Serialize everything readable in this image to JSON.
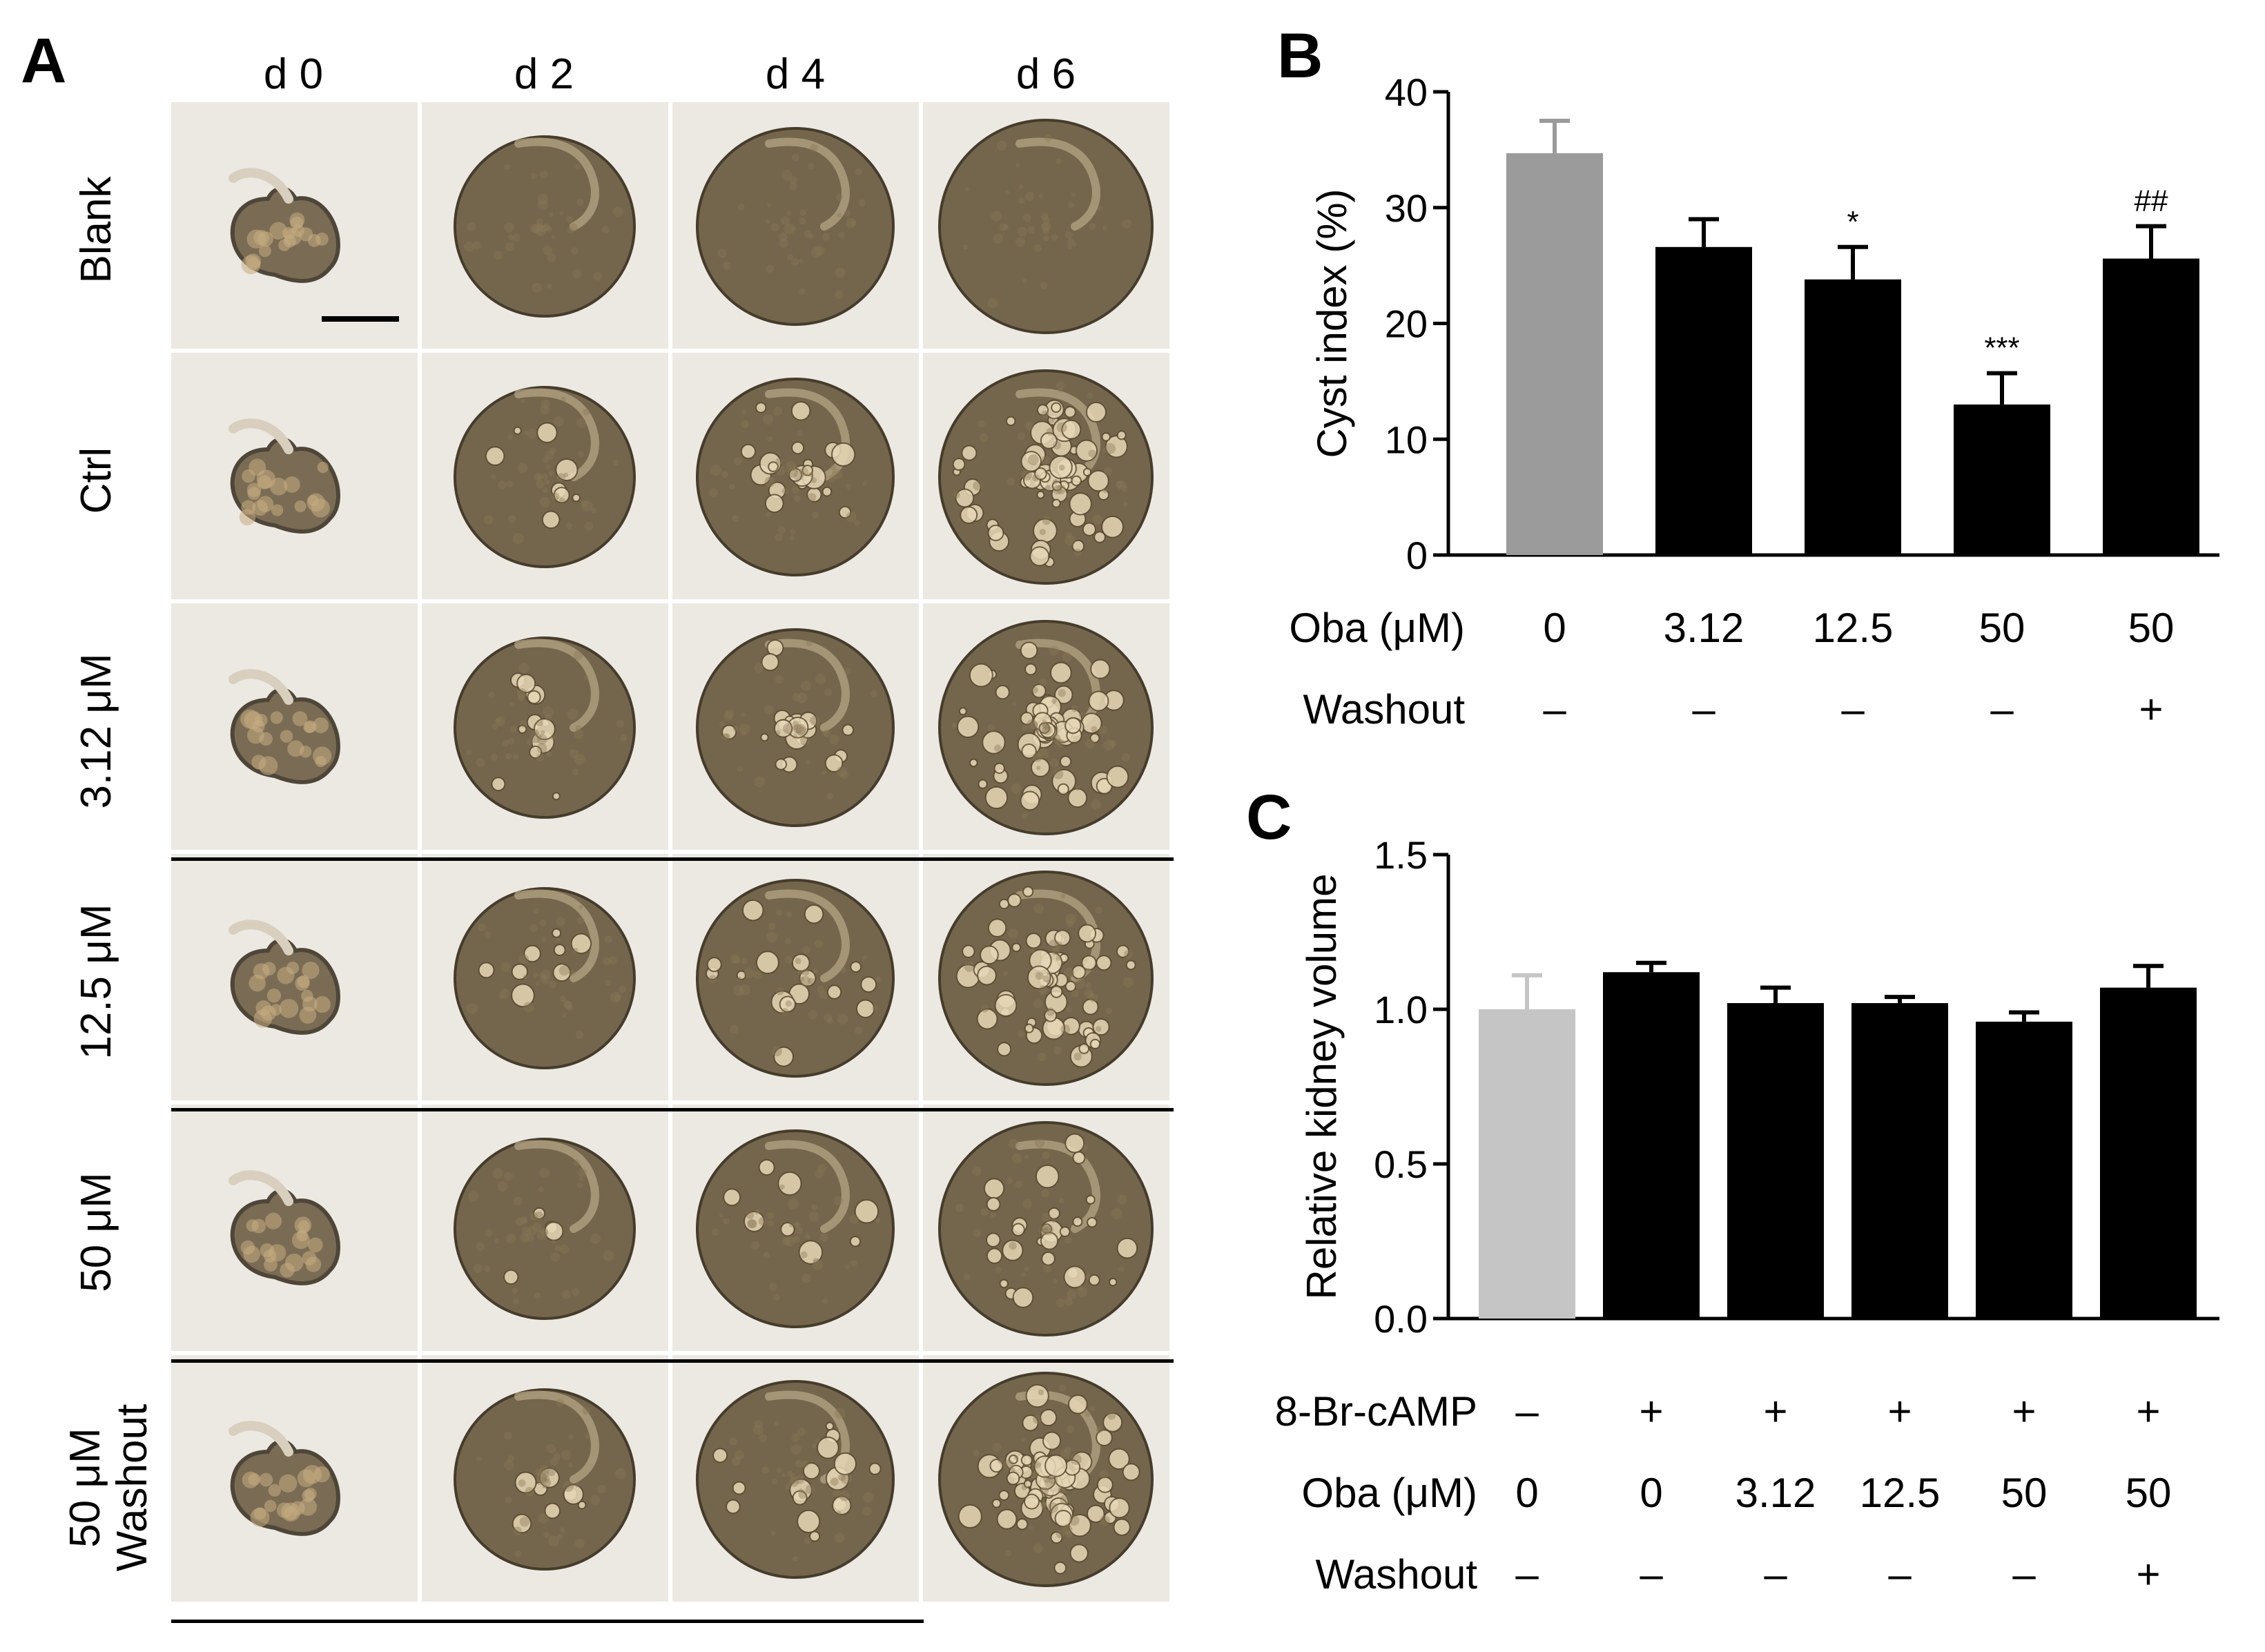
{
  "panel_a": {
    "letter": "A",
    "columns": [
      "d 0",
      "d 2",
      "d 4",
      "d 6"
    ],
    "rows": [
      {
        "label": "Blank",
        "cyst": [
          0,
          0,
          0,
          0
        ]
      },
      {
        "label": "Ctrl",
        "cyst": [
          0,
          0.1,
          0.25,
          0.8
        ]
      },
      {
        "label": "3.12 μM",
        "cyst": [
          0,
          0.15,
          0.25,
          0.75
        ]
      },
      {
        "label": "12.5 μM",
        "cyst": [
          0,
          0.1,
          0.2,
          0.7
        ]
      },
      {
        "label": "50 μM",
        "cyst": [
          0,
          0.05,
          0.1,
          0.35
        ]
      },
      {
        "label_lines": [
          "50 μM",
          "Washout"
        ],
        "cyst": [
          0,
          0.1,
          0.2,
          0.8
        ]
      }
    ],
    "colors": {
      "tissue": "#6e5f45",
      "tissue_light": "#c7ad82",
      "background": "#ece9e3"
    }
  },
  "chart_data": [
    {
      "panel": "B",
      "type": "bar",
      "ylabel": "Cyst index (%)",
      "ylim": [
        0,
        40
      ],
      "yticks": [
        "0",
        "10",
        "20",
        "30",
        "40"
      ],
      "categories": [
        "0",
        "3.12",
        "12.5",
        "50",
        "50"
      ],
      "values": [
        34.7,
        26.6,
        23.8,
        13.0,
        25.6
      ],
      "errors": [
        2.8,
        2.4,
        2.8,
        2.7,
        2.8
      ],
      "colors": [
        "#9b9b9b",
        "#000000",
        "#000000",
        "#000000",
        "#000000"
      ],
      "annotations": [
        "",
        "",
        "*",
        "***",
        "##"
      ],
      "table_rows": [
        {
          "label": "Oba (μM)",
          "cells": [
            "0",
            "3.12",
            "12.5",
            "50",
            "50"
          ]
        },
        {
          "label": "Washout",
          "cells": [
            "–",
            "–",
            "–",
            "–",
            "+"
          ]
        }
      ]
    },
    {
      "panel": "C",
      "type": "bar",
      "ylabel": "Relative kidney volume",
      "ylim": [
        0,
        1.5
      ],
      "yticks": [
        "0.0",
        "0.5",
        "1.0",
        "1.5"
      ],
      "categories": [
        "0",
        "0",
        "3.12",
        "12.5",
        "50",
        "50"
      ],
      "values": [
        1.0,
        1.12,
        1.02,
        1.02,
        0.96,
        1.07
      ],
      "errors": [
        0.11,
        0.03,
        0.05,
        0.02,
        0.03,
        0.07
      ],
      "colors": [
        "#c5c5c5",
        "#000000",
        "#000000",
        "#000000",
        "#000000",
        "#000000"
      ],
      "annotations": [
        "",
        "",
        "",
        "",
        "",
        ""
      ],
      "table_rows": [
        {
          "label": "8-Br-cAMP",
          "cells": [
            "–",
            "+",
            "+",
            "+",
            "+",
            "+"
          ]
        },
        {
          "label": "Oba (μM)",
          "cells": [
            "0",
            "0",
            "3.12",
            "12.5",
            "50",
            "50"
          ]
        },
        {
          "label": "Washout",
          "cells": [
            "–",
            "–",
            "–",
            "–",
            "–",
            "+"
          ]
        }
      ]
    }
  ]
}
